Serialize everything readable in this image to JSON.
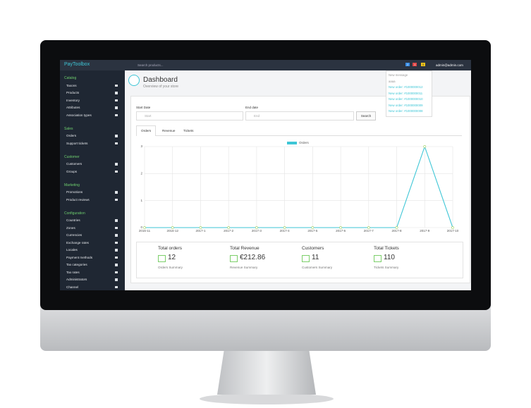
{
  "header": {
    "logo": "PayToolbox",
    "search": "Search products...",
    "badges": [
      "2",
      "1",
      "5"
    ],
    "user": "admin@admin.com"
  },
  "notifications": [
    "New message",
    "aaaa",
    "New order: #1000000012",
    "New order: #1000000011",
    "New order: #1000000010",
    "New order: #1000000009",
    "New order: #1000000008"
  ],
  "sidebar": [
    {
      "title": "Catalog",
      "items": [
        "Taxons",
        "Products",
        "Inventory",
        "Attributes",
        "Association types"
      ]
    },
    {
      "title": "Sales",
      "items": [
        "Orders",
        "Support tickets"
      ]
    },
    {
      "title": "Customer",
      "items": [
        "Customers",
        "Groups"
      ]
    },
    {
      "title": "Marketing",
      "items": [
        "Promotions",
        "Product reviews"
      ]
    },
    {
      "title": "Configuration",
      "items": [
        "Countries",
        "Zones",
        "Currencies",
        "Exchange rates",
        "Locales",
        "Payment methods",
        "Tax categories",
        "Tax rates",
        "Administrators",
        "Channel"
      ]
    }
  ],
  "page": {
    "title": "Dashboard",
    "subtitle": "Overview of your store",
    "start_label": "Start Date",
    "start_placeholder": "Start",
    "end_label": "End date",
    "end_placeholder": "End",
    "search_button": "Search",
    "tabs": [
      "Orders",
      "Revenue",
      "Tickets"
    ]
  },
  "chart_data": {
    "type": "line",
    "categories": [
      "2016-11",
      "2016-12",
      "2017-1",
      "2017-2",
      "2017-3",
      "2017-4",
      "2017-5",
      "2017-6",
      "2017-7",
      "2017-8",
      "2017-9",
      "2017-10"
    ],
    "series": [
      {
        "name": "Orders",
        "color": "#3ec6d6",
        "values": [
          0,
          0,
          0,
          0,
          0,
          0,
          0,
          0,
          0,
          0,
          3,
          0
        ]
      }
    ],
    "ylim": [
      0,
      3
    ],
    "yticks": [
      0,
      1,
      2,
      3
    ],
    "grid": true
  },
  "summary": [
    {
      "title": "Total orders",
      "value": "12",
      "label": "Orders Summary"
    },
    {
      "title": "Total Revenue",
      "value": "€212.86",
      "label": "Revenue Summary"
    },
    {
      "title": "Customers",
      "value": "11",
      "label": "Customers Summary"
    },
    {
      "title": "Total Tickets",
      "value": "110",
      "label": "Tickets Summary"
    }
  ]
}
